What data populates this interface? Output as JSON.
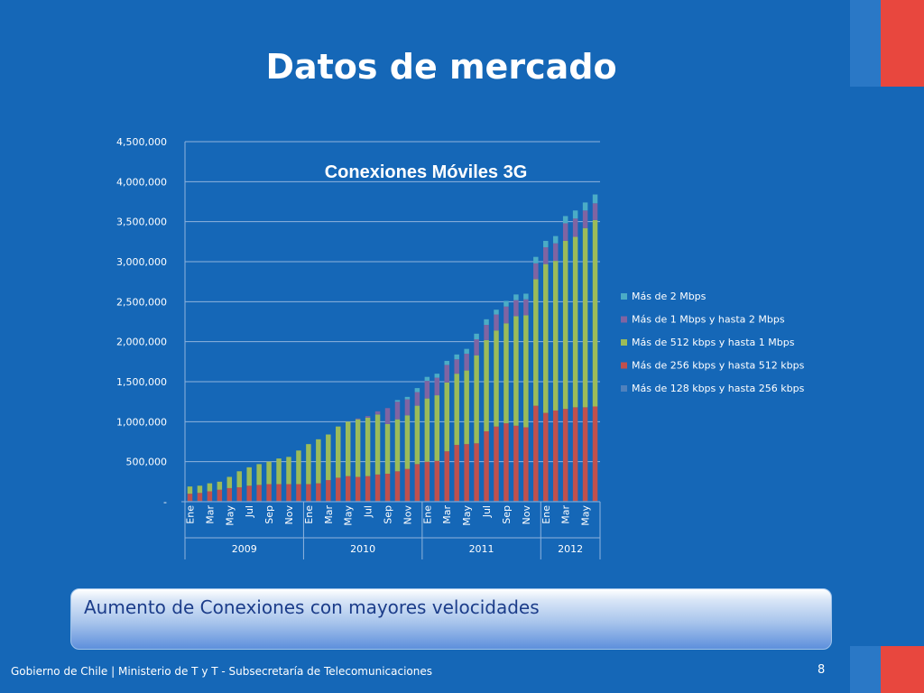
{
  "slide": {
    "title": "Datos de mercado",
    "callout": "Aumento de Conexiones con mayores velocidades",
    "footer": "Gobierno de Chile | Ministerio de T y T - Subsecretaría de Telecomunicaciones",
    "page_number": "8"
  },
  "colors": {
    "background": "#1567b7",
    "flag_red": "#e8473e",
    "grid": "#8fb3dc",
    "series": [
      "#4f81bd",
      "#c0504d",
      "#9bbb59",
      "#8064a2",
      "#4bacc6"
    ]
  },
  "chart_data": {
    "type": "bar",
    "stacked": true,
    "title": "Conexiones Móviles 3G",
    "xlabel": "",
    "ylabel": "",
    "ylim": [
      0,
      4500000
    ],
    "yticks": [
      0,
      500000,
      1000000,
      1500000,
      2000000,
      2500000,
      3000000,
      3500000,
      4000000,
      4500000
    ],
    "ytick_labels": [
      "-",
      "500,000",
      "1,000,000",
      "1,500,000",
      "2,000,000",
      "2,500,000",
      "3,000,000",
      "3,500,000",
      "4,000,000",
      "4,500,000"
    ],
    "grid": true,
    "legend_position": "right",
    "categories": [
      "Ene",
      "Feb",
      "Mar",
      "Abr",
      "May",
      "Jun",
      "Jul",
      "Ago",
      "Sep",
      "Oct",
      "Nov",
      "Dic",
      "Ene",
      "Feb",
      "Mar",
      "Abr",
      "May",
      "Jun",
      "Jul",
      "Ago",
      "Sep",
      "Oct",
      "Nov",
      "Dic",
      "Ene",
      "Feb",
      "Mar",
      "Abr",
      "May",
      "Jun",
      "Jul",
      "Ago",
      "Sep",
      "Oct",
      "Nov",
      "Dic",
      "Ene",
      "Feb",
      "Mar",
      "Abr",
      "May",
      "Jun"
    ],
    "x_tick_labels": [
      "Ene",
      "",
      "Mar",
      "",
      "May",
      "",
      "Jul",
      "",
      "Sep",
      "",
      "Nov",
      "",
      "Ene",
      "",
      "Mar",
      "",
      "May",
      "",
      "Jul",
      "",
      "Sep",
      "",
      "Nov",
      "",
      "Ene",
      "",
      "Mar",
      "",
      "May",
      "",
      "Jul",
      "",
      "Sep",
      "",
      "Nov",
      "",
      "Ene",
      "",
      "Mar",
      "",
      "May",
      ""
    ],
    "year_groups": [
      {
        "label": "2009",
        "count": 12
      },
      {
        "label": "2010",
        "count": 12
      },
      {
        "label": "2011",
        "count": 12
      },
      {
        "label": "2012",
        "count": 6
      }
    ],
    "series": [
      {
        "name": "Más de 128 kbps y hasta 256 kbps",
        "values": [
          10000,
          10000,
          10000,
          10000,
          10000,
          10000,
          10000,
          10000,
          10000,
          10000,
          10000,
          10000,
          10000,
          10000,
          10000,
          10000,
          10000,
          10000,
          10000,
          10000,
          10000,
          10000,
          10000,
          10000,
          10000,
          10000,
          10000,
          10000,
          10000,
          10000,
          10000,
          10000,
          10000,
          10000,
          10000,
          10000,
          10000,
          10000,
          10000,
          10000,
          10000,
          10000
        ]
      },
      {
        "name": "Más de 256 kbps y hasta 512 kbps",
        "values": [
          90000,
          100000,
          120000,
          140000,
          160000,
          170000,
          190000,
          200000,
          210000,
          210000,
          210000,
          210000,
          210000,
          220000,
          260000,
          290000,
          310000,
          300000,
          310000,
          330000,
          340000,
          370000,
          400000,
          460000,
          490000,
          500000,
          620000,
          700000,
          710000,
          720000,
          870000,
          930000,
          970000,
          940000,
          920000,
          1190000,
          1100000,
          1130000,
          1150000,
          1170000,
          1170000,
          1180000
        ]
      },
      {
        "name": "Más de 512 kbps y hasta 1 Mbps",
        "values": [
          90000,
          90000,
          100000,
          100000,
          140000,
          200000,
          230000,
          260000,
          280000,
          320000,
          340000,
          420000,
          500000,
          550000,
          570000,
          640000,
          680000,
          720000,
          730000,
          750000,
          620000,
          650000,
          670000,
          730000,
          790000,
          820000,
          860000,
          890000,
          920000,
          1100000,
          1140000,
          1200000,
          1250000,
          1370000,
          1400000,
          1580000,
          1860000,
          1870000,
          2100000,
          2130000,
          2240000,
          2330000
        ]
      },
      {
        "name": "Más de 1 Mbps y hasta 2 Mbps",
        "values": [
          0,
          0,
          0,
          0,
          0,
          0,
          0,
          0,
          0,
          0,
          0,
          0,
          0,
          0,
          0,
          0,
          0,
          10000,
          20000,
          40000,
          200000,
          220000,
          200000,
          170000,
          220000,
          220000,
          220000,
          180000,
          210000,
          200000,
          190000,
          200000,
          210000,
          200000,
          200000,
          200000,
          210000,
          220000,
          220000,
          230000,
          220000,
          210000
        ]
      },
      {
        "name": "Más de 2 Mbps",
        "values": [
          0,
          0,
          0,
          0,
          0,
          0,
          0,
          0,
          0,
          0,
          0,
          0,
          0,
          0,
          0,
          0,
          0,
          0,
          0,
          0,
          0,
          20000,
          30000,
          50000,
          50000,
          50000,
          50000,
          60000,
          60000,
          70000,
          70000,
          60000,
          70000,
          70000,
          70000,
          80000,
          80000,
          90000,
          90000,
          100000,
          100000,
          110000
        ]
      }
    ]
  }
}
